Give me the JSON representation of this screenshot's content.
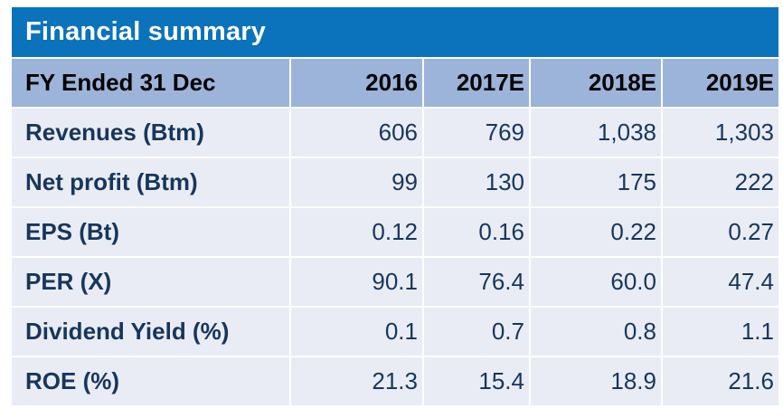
{
  "chart_data": {
    "type": "table",
    "title": "Financial summary",
    "columns": [
      "FY Ended 31 Dec",
      "2016",
      "2017E",
      "2018E",
      "2019E"
    ],
    "rows": [
      {
        "label": "Revenues (Btm)",
        "values": [
          "606",
          "769",
          "1,038",
          "1,303"
        ]
      },
      {
        "label": "Net profit (Btm)",
        "values": [
          "99",
          "130",
          "175",
          "222"
        ]
      },
      {
        "label": "EPS (Bt)",
        "values": [
          "0.12",
          "0.16",
          "0.22",
          "0.27"
        ]
      },
      {
        "label": "PER (X)",
        "values": [
          "90.1",
          "76.4",
          "60.0",
          "47.4"
        ]
      },
      {
        "label": "Dividend Yield (%)",
        "values": [
          "0.1",
          "0.7",
          "0.8",
          "1.1"
        ]
      },
      {
        "label": "ROE (%)",
        "values": [
          "21.3",
          "15.4",
          "18.9",
          "21.6"
        ]
      }
    ],
    "layout_hints": {
      "numbers_alignment": "right",
      "labels_alignment": "left",
      "separators": "white 2px between all cells"
    }
  },
  "colors": {
    "title_bar": "#0b72bc",
    "title_text": "#ffffff",
    "header_row": "#9cb4d9",
    "header_text": "#000000",
    "data_row": "#e9ecf4",
    "data_text": "#17365d",
    "separator": "#ffffff"
  }
}
